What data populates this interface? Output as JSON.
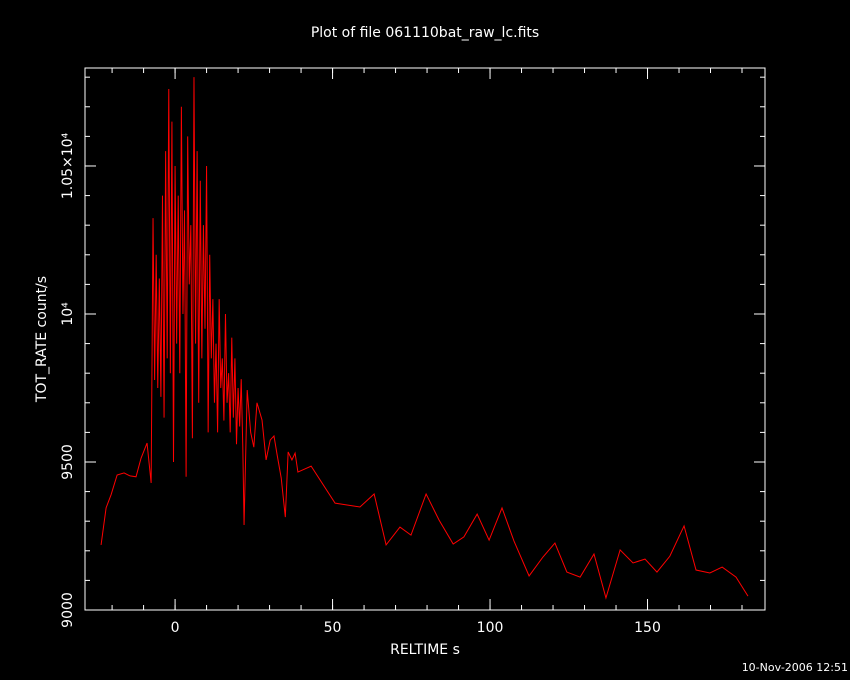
{
  "chart_data": {
    "type": "line",
    "title": "Plot of file 061110bat_raw_lc.fits",
    "x_label": "RELTIME  s",
    "y_label": "TOT_RATE  count/s",
    "footer": "10-Nov-2006 12:51",
    "color": "#ff0000",
    "xlim": [
      -28.6,
      187.3
    ],
    "ylim": [
      9000,
      10831
    ],
    "xticks": [
      0,
      50,
      100,
      150
    ],
    "yticks": [
      9000,
      9500,
      {
        "value": 10000,
        "label": "10⁴"
      },
      {
        "value": 10500,
        "label": "1.05×10⁴"
      }
    ],
    "minor_ticks": true,
    "grid": false,
    "x": [
      -23.5,
      -21.9,
      -20.3,
      -18.4,
      -16.2,
      -14.3,
      -12.4,
      -10.8,
      -8.9,
      -7.6,
      -7,
      -6.5,
      -6,
      -5.5,
      -5,
      -4.5,
      -4,
      -3.5,
      -3,
      -2.5,
      -2,
      -1.5,
      -1,
      -0.5,
      0,
      0.5,
      1,
      1.5,
      2,
      2.5,
      3,
      3.5,
      4,
      4.5,
      5,
      5.5,
      6,
      6.5,
      7,
      7.5,
      8,
      8.5,
      9,
      9.5,
      10,
      10.5,
      11,
      11.5,
      12,
      12.5,
      13,
      13.5,
      14,
      14.5,
      15,
      15.5,
      16,
      16.5,
      17,
      17.5,
      18,
      18.5,
      19,
      19.5,
      20,
      20.5,
      21,
      21.5,
      21.9,
      22.9,
      24,
      25,
      26,
      27.6,
      28.9,
      30.2,
      31.4,
      32.4,
      33.7,
      35,
      35.9,
      37.1,
      38.1,
      39,
      43.2,
      50.8,
      58.7,
      63.2,
      67,
      71.4,
      74.9,
      79.7,
      83.8,
      88.3,
      91.7,
      95.9,
      99.7,
      103.8,
      107.6,
      112.4,
      116.8,
      120.6,
      124.4,
      128.6,
      133,
      136.8,
      141.3,
      145.4,
      149.2,
      153,
      157.1,
      161.6,
      165.4,
      169.8,
      173.7,
      178.1,
      181.9
    ],
    "values": [
      9220,
      9345,
      9390,
      9456,
      9463,
      9453,
      9450,
      9513,
      9564,
      9429,
      10324,
      9777,
      10200,
      9750,
      10120,
      9720,
      10400,
      9650,
      10550,
      9850,
      10760,
      9800,
      10650,
      9500,
      10500,
      9900,
      10400,
      9800,
      10700,
      10000,
      10350,
      9450,
      10600,
      10100,
      10300,
      9580,
      10800,
      9900,
      10550,
      9700,
      10450,
      9850,
      10300,
      9950,
      10500,
      9600,
      10200,
      9850,
      10050,
      9700,
      9900,
      9600,
      10050,
      9750,
      9850,
      9640,
      10000,
      9700,
      9800,
      9600,
      9920,
      9650,
      9850,
      9560,
      9750,
      9620,
      9780,
      9550,
      9287,
      9743,
      9600,
      9550,
      9700,
      9642,
      9507,
      9574,
      9588,
      9524,
      9446,
      9314,
      9534,
      9507,
      9530,
      9466,
      9486,
      9361,
      9348,
      9392,
      9220,
      9280,
      9253,
      9392,
      9304,
      9223,
      9247,
      9324,
      9236,
      9345,
      9233,
      9115,
      9179,
      9226,
      9128,
      9111,
      9189,
      9041,
      9203,
      9159,
      9172,
      9128,
      9182,
      9284,
      9135,
      9125,
      9145,
      9111,
      9047
    ]
  }
}
